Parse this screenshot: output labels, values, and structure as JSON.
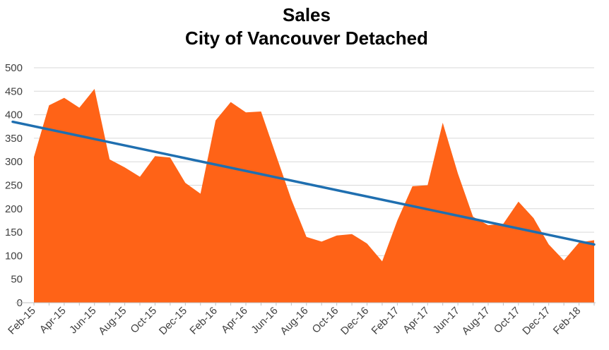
{
  "chart_data": {
    "type": "area",
    "title": "Sales",
    "subtitle": "City of Vancouver Detached",
    "xlabel": "",
    "ylabel": "",
    "ylim": [
      0,
      500
    ],
    "yticks": [
      0,
      50,
      100,
      150,
      200,
      250,
      300,
      350,
      400,
      450,
      500
    ],
    "grid": true,
    "legend": "none",
    "x": [
      "Feb-15",
      "Mar-15",
      "Apr-15",
      "May-15",
      "Jun-15",
      "Jul-15",
      "Aug-15",
      "Sep-15",
      "Oct-15",
      "Nov-15",
      "Dec-15",
      "Jan-16",
      "Feb-16",
      "Mar-16",
      "Apr-16",
      "May-16",
      "Jun-16",
      "Jul-16",
      "Aug-16",
      "Sep-16",
      "Oct-16",
      "Nov-16",
      "Dec-16",
      "Jan-17",
      "Feb-17",
      "Mar-17",
      "Apr-17",
      "May-17",
      "Jun-17",
      "Jul-17",
      "Aug-17",
      "Sep-17",
      "Oct-17",
      "Nov-17",
      "Dec-17",
      "Jan-18",
      "Feb-18",
      "Mar-18"
    ],
    "xtick_labels": [
      "Feb-15",
      "Apr-15",
      "Jun-15",
      "Aug-15",
      "Oct-15",
      "Dec-15",
      "Feb-16",
      "Apr-16",
      "Jun-16",
      "Aug-16",
      "Oct-16",
      "Dec-16",
      "Feb-17",
      "Apr-17",
      "Jun-17",
      "Aug-17",
      "Oct-17",
      "Dec-17",
      "Feb-18"
    ],
    "series": [
      {
        "values": [
          310,
          420,
          436,
          415,
          455,
          305,
          288,
          268,
          312,
          309,
          255,
          232,
          388,
          427,
          405,
          407,
          313,
          220,
          140,
          130,
          143,
          146,
          126,
          88,
          175,
          248,
          250,
          383,
          275,
          183,
          165,
          168,
          215,
          180,
          124,
          90,
          128,
          133
        ],
        "color": "#ff6317"
      }
    ],
    "trendline": {
      "start": 385,
      "end": 124,
      "color": "#1f6fb0"
    }
  }
}
